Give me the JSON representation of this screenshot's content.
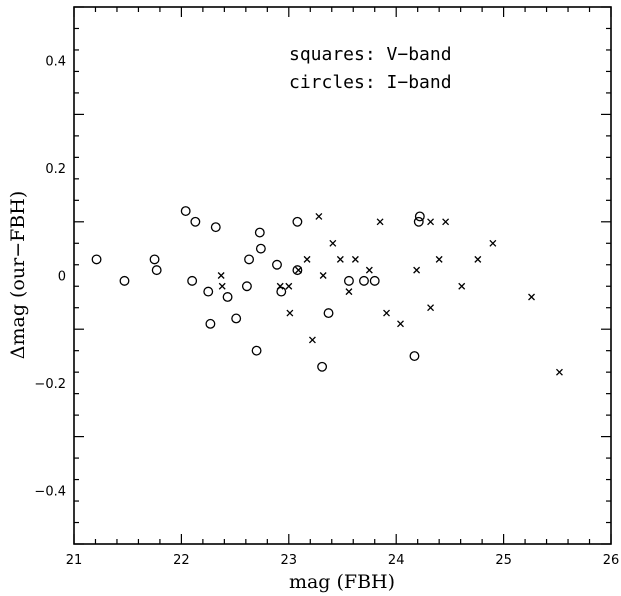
{
  "chart_data": {
    "type": "scatter",
    "xlabel": "mag (FBH)",
    "ylabel": "Δmag (our−FBH)",
    "xlim": [
      21,
      26
    ],
    "ylim": [
      -0.5,
      0.5
    ],
    "x_ticks": [
      21,
      22,
      23,
      24,
      25,
      26
    ],
    "y_ticks": [
      -0.4,
      -0.2,
      0,
      0.2,
      0.4
    ],
    "x_tick_labels": [
      "21",
      "22",
      "23",
      "24",
      "25",
      "26"
    ],
    "y_tick_labels": [
      "−0.4",
      "−0.2",
      "0",
      "0.2",
      "0.4"
    ],
    "annotations": [
      "squares: V−band",
      "circles: I−band"
    ],
    "grid": false,
    "series": [
      {
        "marker": "circle",
        "points": [
          [
            21.21,
            0.03
          ],
          [
            21.47,
            -0.01
          ],
          [
            21.75,
            0.03
          ],
          [
            21.77,
            0.01
          ],
          [
            22.04,
            0.12
          ],
          [
            22.1,
            -0.01
          ],
          [
            22.13,
            0.1
          ],
          [
            22.25,
            -0.03
          ],
          [
            22.27,
            -0.09
          ],
          [
            22.32,
            0.09
          ],
          [
            22.43,
            -0.04
          ],
          [
            22.51,
            -0.08
          ],
          [
            22.61,
            -0.02
          ],
          [
            22.63,
            0.03
          ],
          [
            22.7,
            -0.14
          ],
          [
            22.73,
            0.08
          ],
          [
            22.74,
            0.05
          ],
          [
            22.89,
            0.02
          ],
          [
            22.93,
            -0.03
          ],
          [
            23.08,
            0.1
          ],
          [
            23.08,
            0.01
          ],
          [
            23.31,
            -0.17
          ],
          [
            23.37,
            -0.07
          ],
          [
            23.56,
            -0.01
          ],
          [
            23.7,
            -0.01
          ],
          [
            23.8,
            -0.01
          ],
          [
            24.17,
            -0.15
          ],
          [
            24.21,
            0.1
          ],
          [
            24.22,
            0.11
          ]
        ]
      },
      {
        "marker": "cross",
        "points": [
          [
            22.37,
            0.0
          ],
          [
            22.38,
            -0.02
          ],
          [
            22.92,
            -0.02
          ],
          [
            23.0,
            -0.02
          ],
          [
            23.01,
            -0.07
          ],
          [
            23.09,
            0.01
          ],
          [
            23.17,
            0.03
          ],
          [
            23.22,
            -0.12
          ],
          [
            23.28,
            0.11
          ],
          [
            23.32,
            0.0
          ],
          [
            23.41,
            0.06
          ],
          [
            23.48,
            0.03
          ],
          [
            23.56,
            -0.03
          ],
          [
            23.62,
            0.03
          ],
          [
            23.75,
            0.01
          ],
          [
            23.85,
            0.1
          ],
          [
            23.91,
            -0.07
          ],
          [
            24.04,
            -0.09
          ],
          [
            24.19,
            0.01
          ],
          [
            24.32,
            -0.06
          ],
          [
            24.32,
            0.1
          ],
          [
            24.4,
            0.03
          ],
          [
            24.46,
            0.1
          ],
          [
            24.61,
            -0.02
          ],
          [
            24.76,
            0.03
          ],
          [
            24.9,
            0.06
          ],
          [
            25.26,
            -0.04
          ],
          [
            25.52,
            -0.18
          ]
        ]
      }
    ]
  }
}
